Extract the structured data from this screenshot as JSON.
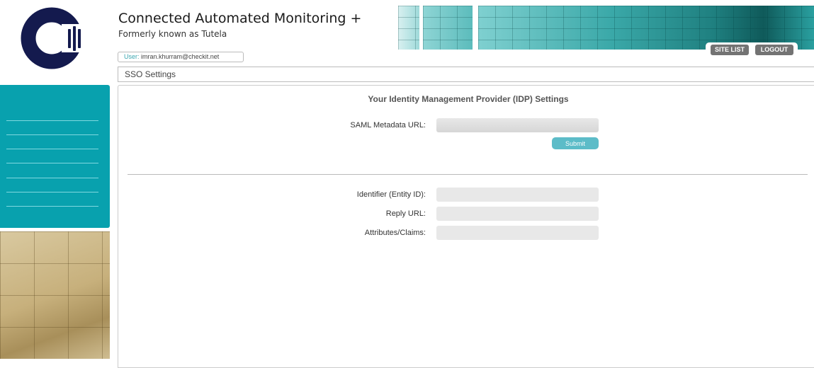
{
  "header": {
    "title": "Connected Automated Monitoring +",
    "subtitle": "Formerly known as Tutela",
    "user_label": "User:",
    "user_value": "imran.khurram@checkit.net"
  },
  "nav": {
    "site_list": "SITE LIST",
    "logout": "LOGOUT"
  },
  "breadcrumb": "SSO Settings",
  "form": {
    "heading": "Your Identity Management Provider (IDP) Settings",
    "saml_label": "SAML Metadata URL:",
    "saml_value": "",
    "submit": "Submit",
    "identifier_label": "Identifier (Entity ID):",
    "identifier_value": "",
    "reply_label": "Reply URL:",
    "reply_value": "",
    "attributes_label": "Attributes/Claims:",
    "attributes_value": ""
  },
  "colors": {
    "brand_navy": "#141a4e",
    "accent_teal": "#08a1ae",
    "button_teal": "#5cbcc8",
    "nav_button": "#737373"
  }
}
